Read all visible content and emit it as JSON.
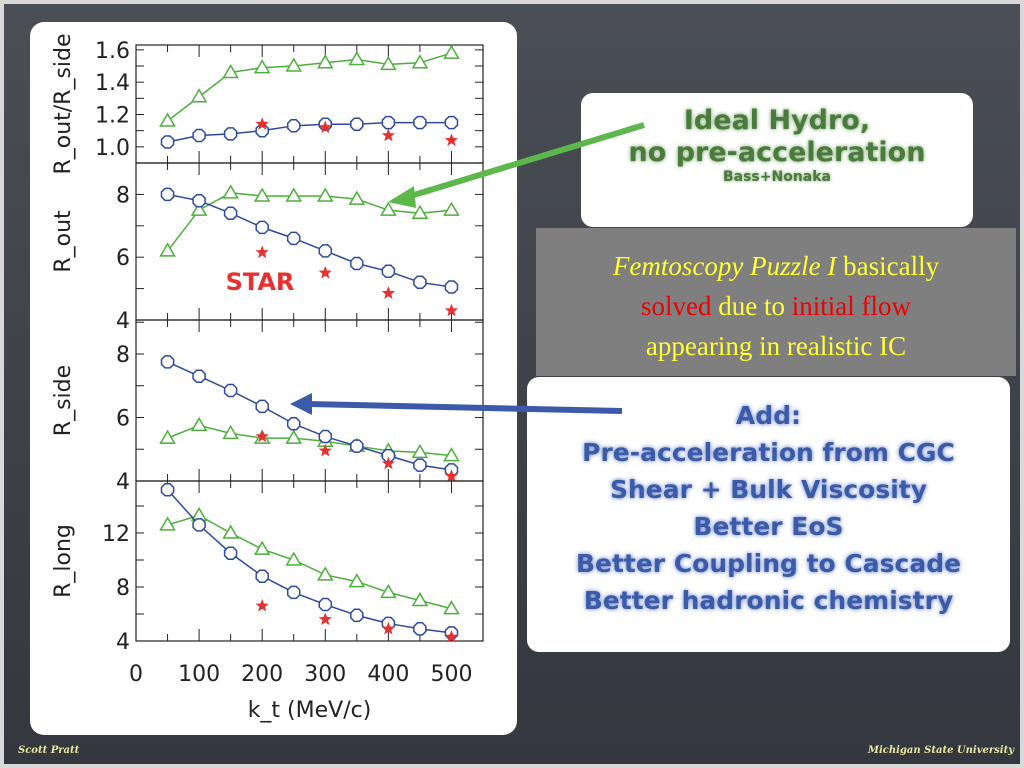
{
  "slide": {
    "hydro_box": {
      "line1": "Ideal Hydro,",
      "line2": "no pre-acceleration",
      "line3": "Bass+Nonaka"
    },
    "puzzle_box": {
      "italic": "Femtoscopy Puzzle I",
      "rest1": " basically",
      "solved": "solved",
      "due_to": " due to ",
      "initial_flow": "initial flow",
      "line3": "appearing in realistic IC"
    },
    "add_box": {
      "lines": [
        "Add:",
        "Pre-acceleration from CGC",
        "Shear + Bulk Viscosity",
        "Better EoS",
        "Better Coupling to Cascade",
        "Better hadronic chemistry"
      ]
    },
    "star_label": "STAR",
    "footer_left": "Scott Pratt",
    "footer_right": "Michigan State University"
  },
  "chart_data": {
    "type": "line",
    "xlabel": "k_t (MeV/c)",
    "x_ticks": [
      "0",
      "100",
      "200",
      "300",
      "400",
      "500"
    ],
    "xlim": [
      0,
      550
    ],
    "x": [
      50,
      100,
      150,
      200,
      250,
      300,
      350,
      400,
      450,
      500
    ],
    "star_x": [
      200,
      300,
      400,
      500
    ],
    "colors": {
      "ideal_hydro": "#4caf3c",
      "realistic": "#2e4a9a",
      "star": "#e83030"
    },
    "panels": [
      {
        "ylabel": "R_out/R_side",
        "ylim": [
          0.9,
          1.63
        ],
        "yticks": [
          "1.0",
          "1.2",
          "1.4",
          "1.6"
        ],
        "ytick_values": [
          1.0,
          1.2,
          1.4,
          1.6
        ],
        "green": [
          1.16,
          1.31,
          1.46,
          1.49,
          1.5,
          1.52,
          1.54,
          1.51,
          1.52,
          1.58
        ],
        "blue": [
          1.03,
          1.07,
          1.08,
          1.1,
          1.13,
          1.14,
          1.14,
          1.15,
          1.15,
          1.15
        ],
        "star": [
          1.14,
          1.12,
          1.07,
          1.04
        ]
      },
      {
        "ylabel": "R_out",
        "ylim": [
          4,
          9
        ],
        "yticks": [
          "4",
          "6",
          "8"
        ],
        "ytick_values": [
          4,
          6,
          8
        ],
        "green": [
          6.2,
          7.5,
          8.05,
          7.95,
          7.95,
          7.95,
          7.85,
          7.5,
          7.4,
          7.5
        ],
        "blue": [
          8.0,
          7.8,
          7.4,
          6.95,
          6.6,
          6.2,
          5.8,
          5.55,
          5.2,
          5.05
        ],
        "star": [
          6.15,
          5.5,
          4.85,
          4.3
        ]
      },
      {
        "ylabel": "R_side",
        "ylim": [
          4,
          9.07
        ],
        "yticks": [
          "4",
          "6",
          "8"
        ],
        "ytick_values": [
          4,
          6,
          8
        ],
        "green": [
          5.35,
          5.75,
          5.5,
          5.35,
          5.35,
          5.25,
          5.1,
          4.95,
          4.9,
          4.8
        ],
        "blue": [
          7.75,
          7.3,
          6.85,
          6.35,
          5.8,
          5.4,
          5.1,
          4.8,
          4.5,
          4.35
        ],
        "star": [
          5.4,
          4.95,
          4.55,
          4.15
        ]
      },
      {
        "ylabel": "R_long",
        "ylim": [
          4,
          15.85
        ],
        "yticks": [
          "4",
          "8",
          "12"
        ],
        "ytick_values": [
          4,
          8,
          12
        ],
        "green": [
          12.6,
          13.3,
          12.0,
          10.8,
          10.0,
          8.9,
          8.4,
          7.6,
          7.0,
          6.4
        ],
        "blue": [
          15.2,
          12.6,
          10.5,
          8.8,
          7.6,
          6.7,
          5.9,
          5.3,
          4.9,
          4.6
        ],
        "star": [
          6.6,
          5.6,
          4.9,
          4.3
        ]
      }
    ]
  }
}
